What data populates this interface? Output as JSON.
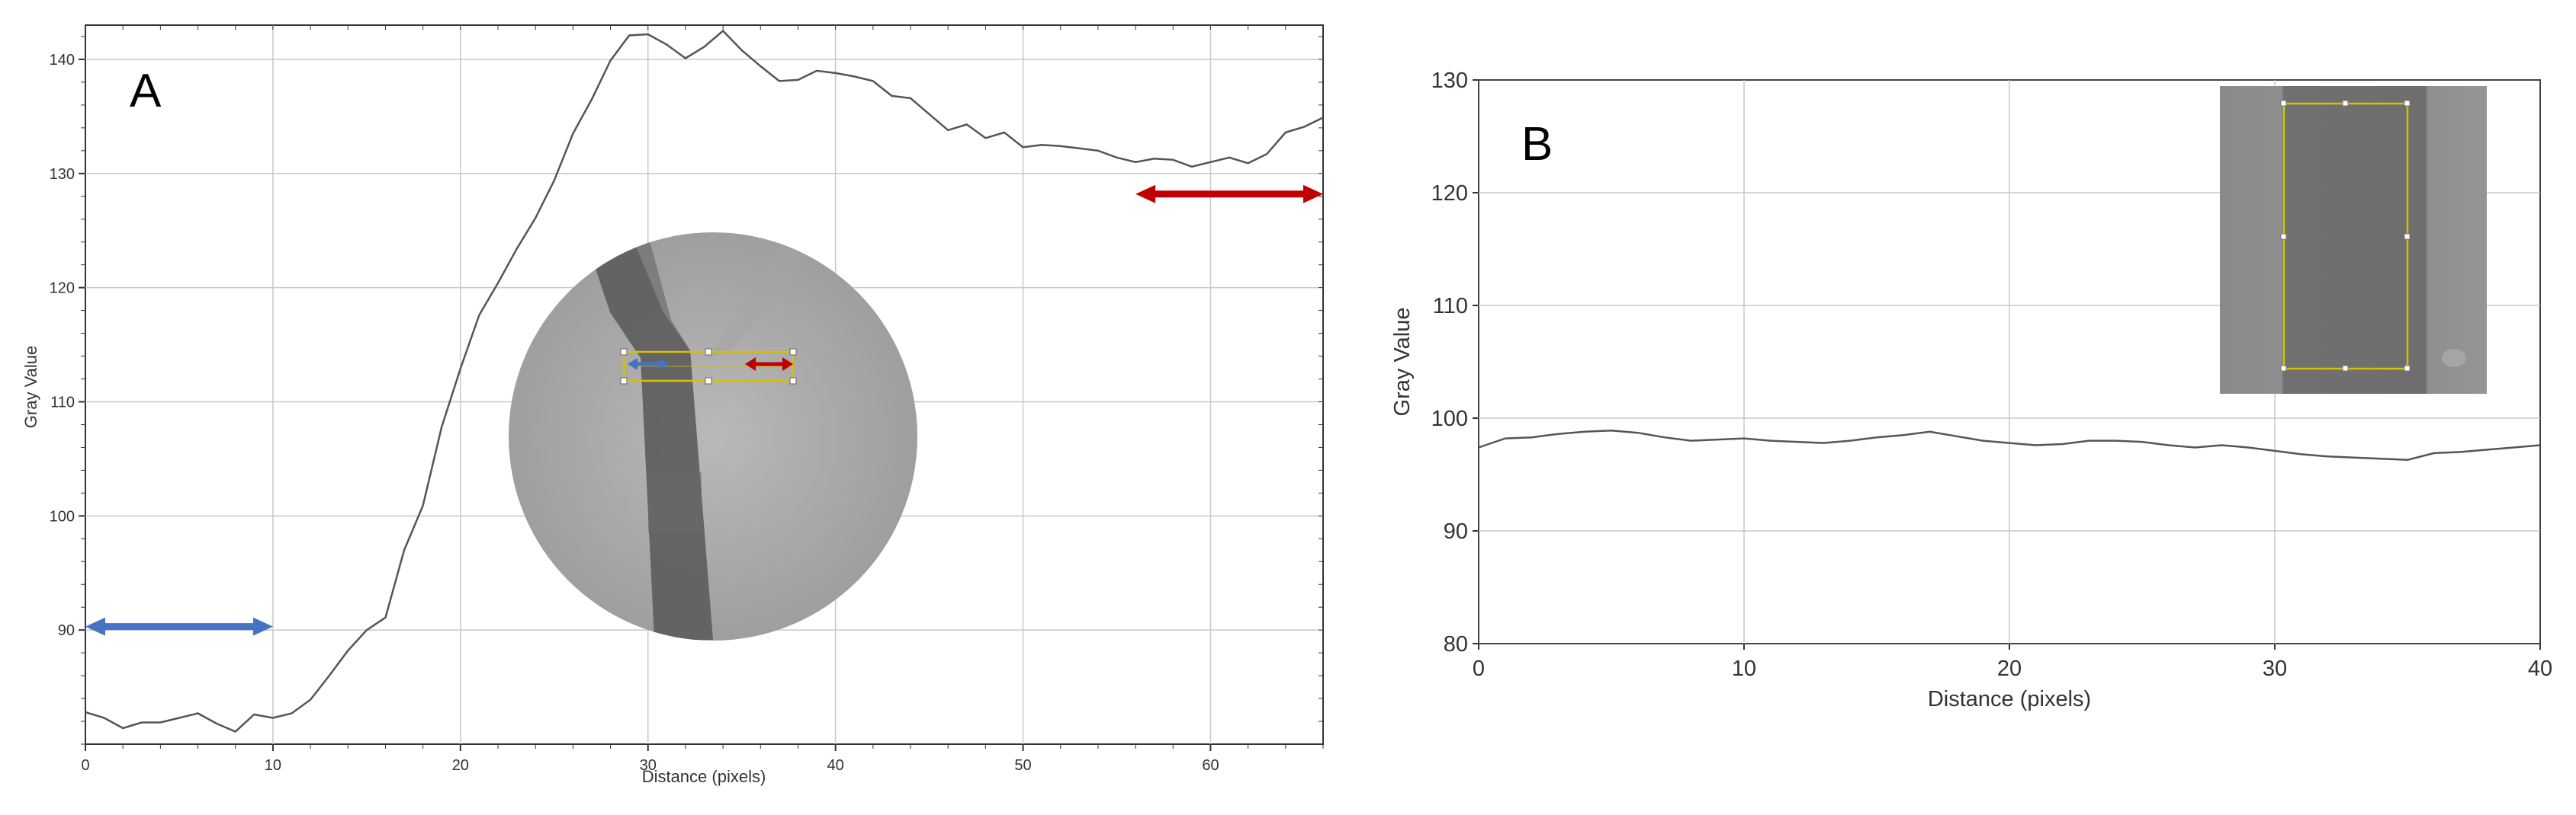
{
  "chart_data": [
    {
      "panel_label": "A",
      "type": "line",
      "xlabel": "Distance (pixels)",
      "ylabel": "Gray Value",
      "xlim": [
        0,
        66
      ],
      "ylim": [
        80,
        143
      ],
      "xticks": [
        0,
        10,
        20,
        30,
        40,
        50,
        60
      ],
      "yticks": [
        90,
        100,
        110,
        120,
        130,
        140
      ],
      "grid": true,
      "series": [
        {
          "x": [
            0,
            1,
            2,
            3,
            4,
            5,
            6,
            7,
            8,
            9,
            10,
            11,
            12,
            13,
            14,
            15,
            16,
            17,
            18,
            19,
            20,
            21,
            22,
            23,
            24,
            25,
            26,
            27,
            28,
            29,
            30,
            31,
            32,
            33,
            34,
            35,
            36,
            37,
            38,
            39,
            40,
            41,
            42,
            43,
            44,
            45,
            46,
            47,
            48,
            49,
            50,
            51,
            52,
            53,
            54,
            55,
            56,
            57,
            58,
            59,
            60,
            61,
            62,
            63,
            64,
            65,
            66
          ],
          "y": [
            82.8,
            82.3,
            81.4,
            81.9,
            81.9,
            82.3,
            82.7,
            81.8,
            81.1,
            82.6,
            82.3,
            82.7,
            83.9,
            86.0,
            88.2,
            90.0,
            91.1,
            97.0,
            100.9,
            107.8,
            112.9,
            117.6,
            120.4,
            123.4,
            126.1,
            129.4,
            133.5,
            136.5,
            139.9,
            142.1,
            142.2,
            141.3,
            140.1,
            141.1,
            142.5,
            140.8,
            139.4,
            138.1,
            138.2,
            139.0,
            138.8,
            138.5,
            138.1,
            136.8,
            136.6,
            135.2,
            133.8,
            134.3,
            133.1,
            133.6,
            132.3,
            132.5,
            132.4,
            132.2,
            132.0,
            131.4,
            131.0,
            131.3,
            131.2,
            130.6,
            131.0,
            131.4,
            130.9,
            131.7,
            133.6,
            134.1,
            134.9
          ]
        }
      ],
      "annotations": [
        {
          "type": "double-arrow",
          "color": "#4472c4",
          "x_range": [
            0,
            10
          ],
          "y": 90.3
        },
        {
          "type": "double-arrow",
          "color": "#c00000",
          "x_range": [
            56,
            66
          ],
          "y": 128.2
        }
      ]
    },
    {
      "panel_label": "B",
      "type": "line",
      "xlabel": "Distance (pixels)",
      "ylabel": "Gray Value",
      "xlim": [
        0,
        40
      ],
      "ylim": [
        80,
        130
      ],
      "xticks": [
        0,
        10,
        20,
        30,
        40
      ],
      "yticks": [
        80,
        90,
        100,
        110,
        120,
        130
      ],
      "grid": true,
      "series": [
        {
          "x": [
            0,
            1,
            2,
            3,
            4,
            5,
            6,
            7,
            8,
            9,
            10,
            11,
            12,
            13,
            14,
            15,
            16,
            17,
            18,
            19,
            20,
            21,
            22,
            23,
            24,
            25,
            26,
            27,
            28,
            29,
            30,
            31,
            32,
            33,
            34,
            35,
            36,
            37,
            38,
            39,
            40
          ],
          "y": [
            97.4,
            98.2,
            98.3,
            98.6,
            98.8,
            98.9,
            98.7,
            98.3,
            98.0,
            98.1,
            98.2,
            98.0,
            97.9,
            97.8,
            98.0,
            98.3,
            98.5,
            98.8,
            98.4,
            98.0,
            97.8,
            97.6,
            97.7,
            98.0,
            98.0,
            97.9,
            97.6,
            97.4,
            97.6,
            97.4,
            97.1,
            96.8,
            96.6,
            96.5,
            96.4,
            96.3,
            96.9,
            97.0,
            97.2,
            97.4,
            97.6
          ]
        }
      ]
    }
  ],
  "colors": {
    "line": "#555555",
    "grid": "#c8c8c8",
    "axis": "#333333",
    "arrow_blue": "#4472c4",
    "arrow_red": "#c00000",
    "roi_yellow": "#d4c200"
  }
}
